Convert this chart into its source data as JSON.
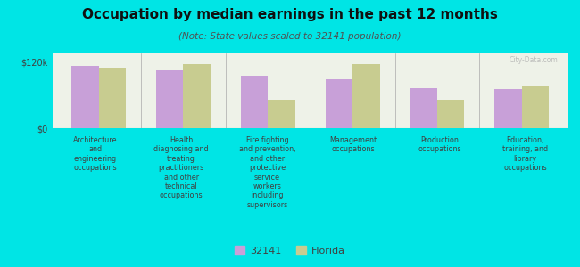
{
  "title": "Occupation by median earnings in the past 12 months",
  "subtitle": "(Note: State values scaled to 32141 population)",
  "background_color": "#00e5e5",
  "plot_bg_color": "#eef2e8",
  "bar_color_32141": "#c8a0d8",
  "bar_color_florida": "#c8cc90",
  "legend_32141": "32141",
  "legend_florida": "Florida",
  "ylim": [
    0,
    135000
  ],
  "ytick_labels": [
    "$0",
    "$120k"
  ],
  "ytick_vals": [
    0,
    120000
  ],
  "categories": [
    "Architecture\nand\nengineering\noccupations",
    "Health\ndiagnosing and\ntreating\npractitioners\nand other\ntechnical\noccupations",
    "Fire fighting\nand prevention,\nand other\nprotective\nservice\nworkers\nincluding\nsupervisors",
    "Management\noccupations",
    "Production\noccupations",
    "Education,\ntraining, and\nlibrary\noccupations"
  ],
  "values_32141": [
    112000,
    105000,
    95000,
    88000,
    72000,
    70000
  ],
  "values_florida": [
    110000,
    115000,
    52000,
    115000,
    52000,
    75000
  ],
  "watermark": "City-Data.com"
}
